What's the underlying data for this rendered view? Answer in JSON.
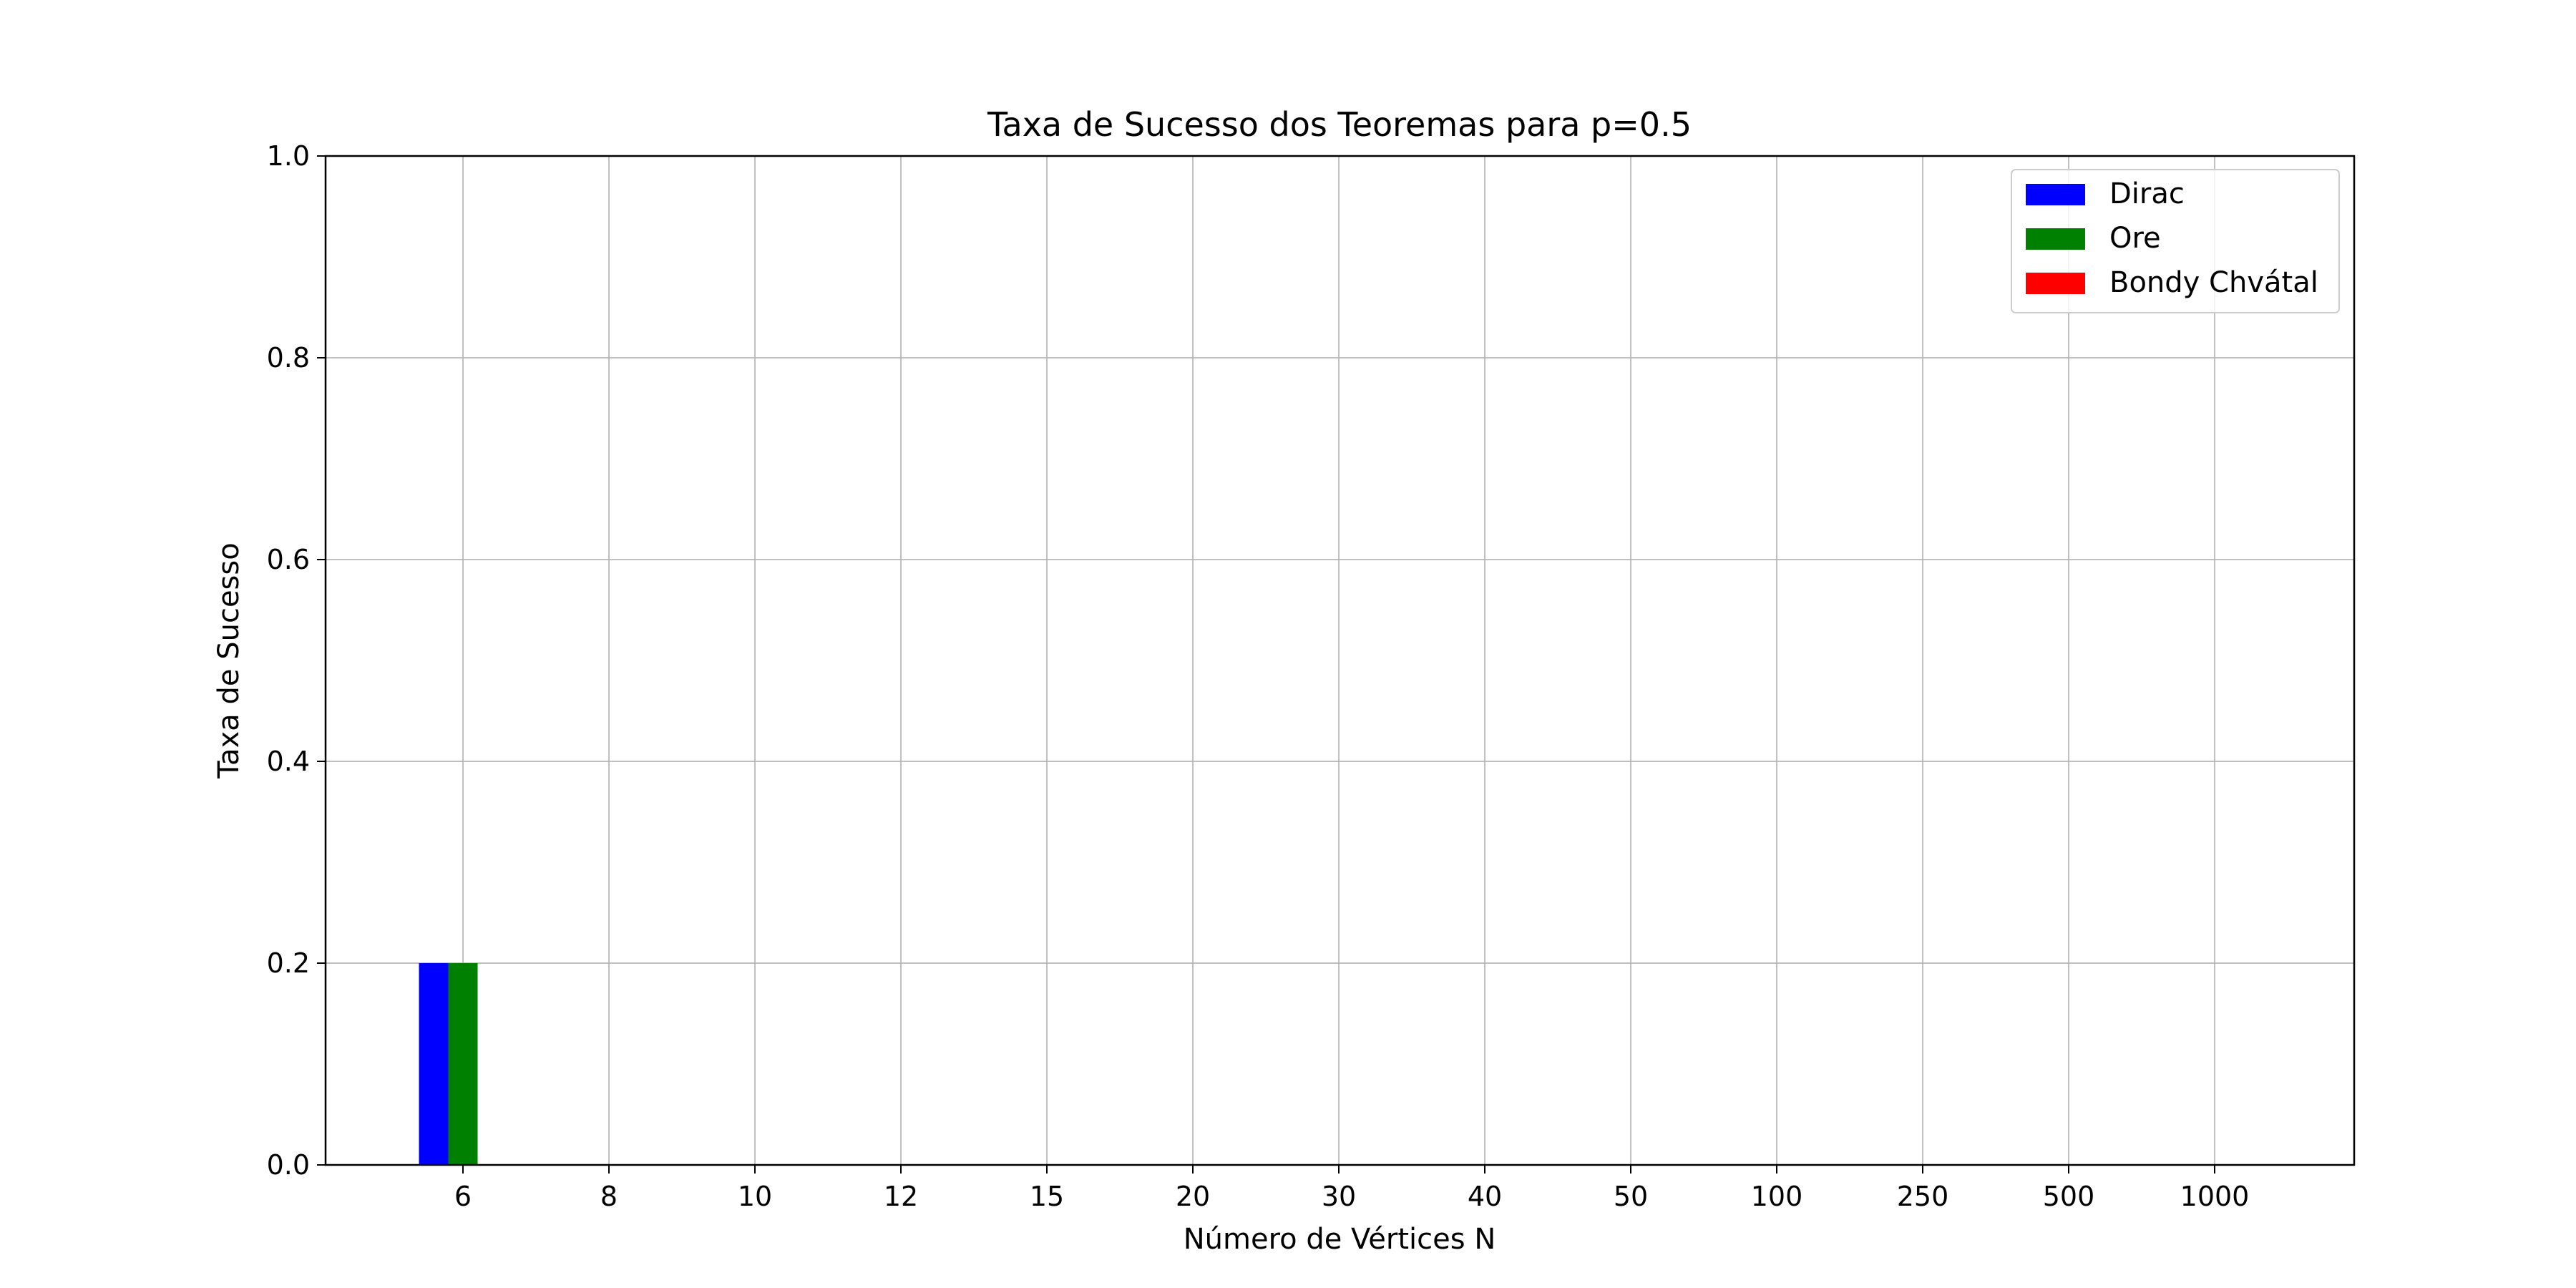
{
  "chart_data": {
    "type": "bar",
    "title": "Taxa de Sucesso dos Teoremas para p=0.5",
    "xlabel": "Número de Vértices N",
    "ylabel": "Taxa de Sucesso",
    "categories": [
      "6",
      "8",
      "10",
      "12",
      "15",
      "20",
      "30",
      "40",
      "50",
      "100",
      "250",
      "500",
      "1000"
    ],
    "series": [
      {
        "name": "Dirac",
        "color": "#0000ff",
        "values": [
          0.2,
          0,
          0,
          0,
          0,
          0,
          0,
          0,
          0,
          0,
          0,
          0,
          0
        ]
      },
      {
        "name": "Ore",
        "color": "#008000",
        "values": [
          0.2,
          0,
          0,
          0,
          0,
          0,
          0,
          0,
          0,
          0,
          0,
          0,
          0
        ]
      },
      {
        "name": "Bondy Chvátal",
        "color": "#ff0000",
        "values": [
          0,
          0,
          0,
          0,
          0,
          0,
          0,
          0,
          0,
          0,
          0,
          0,
          0
        ]
      }
    ],
    "ylim": [
      0,
      1.0
    ],
    "yticks": [
      "0.0",
      "0.2",
      "0.4",
      "0.6",
      "0.8",
      "1.0"
    ],
    "grid": true,
    "legend_position": "top-right"
  }
}
